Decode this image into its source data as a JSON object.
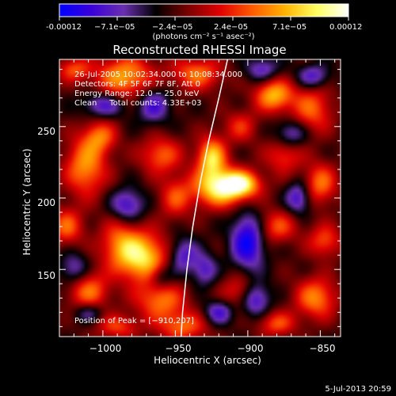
{
  "chart_data": {
    "type": "heatmap",
    "title": "Reconstructed RHESSI Image",
    "xlabel": "Heliocentric X (arcsec)",
    "ylabel": "Heliocentric Y (arcsec)",
    "xlim": [
      -1030,
      -836
    ],
    "ylim": [
      103,
      297
    ],
    "x_ticks": [
      -1000,
      -950,
      -900,
      -850
    ],
    "y_ticks": [
      150,
      200,
      250
    ],
    "x_tick_labels": [
      "−1000",
      "−950",
      "−900",
      "−850"
    ],
    "y_tick_labels": [
      "150",
      "200",
      "250"
    ],
    "colorbar": {
      "min": -0.00012,
      "max": 0.00012,
      "tick_labels": [
        "-0.00012",
        "−7.1e−05",
        "−2.4e−05",
        "2.4e−05",
        "7.1e−05",
        "0.00012"
      ],
      "unit_label": "(photons cm⁻² s⁻¹ asec⁻²)",
      "colors": [
        "#0000ff",
        "#3a00d8",
        "#6a2fb0",
        "#000000",
        "#7a0000",
        "#e00000",
        "#ff5a00",
        "#ffb000",
        "#ffff60",
        "#ffffff"
      ]
    },
    "annotations": {
      "line1": "26-Jul-2005 10:02:34.000 to 10:08:34.000",
      "line2": "Detectors: 4F 5F 6F 7F 8F, Att 0",
      "line3": "Energy Range: 12.0 − 25.0 keV",
      "line4": "Clean     Total counts: 4.33E+03",
      "peak": "Position of Peak = [−910,207]"
    },
    "peak_position": [
      -910,
      207
    ],
    "limb_points": [
      [
        -914,
        297
      ],
      [
        -920,
        270
      ],
      [
        -927,
        240
      ],
      [
        -933,
        210
      ],
      [
        -938,
        180
      ],
      [
        -942,
        150
      ],
      [
        -945,
        120
      ],
      [
        -946,
        103
      ]
    ],
    "blobs": [
      {
        "x": -918,
        "y": 207,
        "v": 1.0,
        "sx": 14,
        "sy": 9
      },
      {
        "x": -925,
        "y": 228,
        "v": 0.9,
        "sx": 7,
        "sy": 10
      },
      {
        "x": -905,
        "y": 210,
        "v": 0.75,
        "sx": 9,
        "sy": 6
      },
      {
        "x": -972,
        "y": 158,
        "v": 0.9,
        "sx": 12,
        "sy": 12
      },
      {
        "x": -988,
        "y": 168,
        "v": 0.55,
        "sx": 10,
        "sy": 12
      },
      {
        "x": -1012,
        "y": 222,
        "v": 0.7,
        "sx": 10,
        "sy": 14
      },
      {
        "x": -1002,
        "y": 243,
        "v": 0.55,
        "sx": 8,
        "sy": 8
      },
      {
        "x": -1025,
        "y": 180,
        "v": 0.55,
        "sx": 8,
        "sy": 9
      },
      {
        "x": -1010,
        "y": 135,
        "v": 0.6,
        "sx": 10,
        "sy": 10
      },
      {
        "x": -960,
        "y": 230,
        "v": 0.55,
        "sx": 10,
        "sy": 9
      },
      {
        "x": -950,
        "y": 200,
        "v": 0.45,
        "sx": 8,
        "sy": 10
      },
      {
        "x": -960,
        "y": 128,
        "v": 0.6,
        "sx": 12,
        "sy": 9
      },
      {
        "x": -945,
        "y": 110,
        "v": 0.55,
        "sx": 12,
        "sy": 7
      },
      {
        "x": -985,
        "y": 285,
        "v": 0.75,
        "sx": 14,
        "sy": 10
      },
      {
        "x": -935,
        "y": 287,
        "v": 0.6,
        "sx": 12,
        "sy": 8
      },
      {
        "x": -882,
        "y": 272,
        "v": 0.8,
        "sx": 9,
        "sy": 8
      },
      {
        "x": -856,
        "y": 262,
        "v": 0.55,
        "sx": 10,
        "sy": 12
      },
      {
        "x": -850,
        "y": 210,
        "v": 0.6,
        "sx": 8,
        "sy": 10
      },
      {
        "x": -875,
        "y": 230,
        "v": 0.45,
        "sx": 9,
        "sy": 9
      },
      {
        "x": -880,
        "y": 180,
        "v": 0.5,
        "sx": 10,
        "sy": 8
      },
      {
        "x": -847,
        "y": 170,
        "v": 0.5,
        "sx": 8,
        "sy": 8
      },
      {
        "x": -853,
        "y": 130,
        "v": 0.65,
        "sx": 10,
        "sy": 10
      },
      {
        "x": -905,
        "y": 135,
        "v": 0.45,
        "sx": 9,
        "sy": 8
      },
      {
        "x": -880,
        "y": 112,
        "v": 0.5,
        "sx": 9,
        "sy": 6
      },
      {
        "x": -1020,
        "y": 290,
        "v": 0.5,
        "sx": 8,
        "sy": 6
      },
      {
        "x": -905,
        "y": 250,
        "v": 0.4,
        "sx": 8,
        "sy": 8
      },
      {
        "x": -990,
        "y": 110,
        "v": 0.45,
        "sx": 10,
        "sy": 6
      },
      {
        "x": -983,
        "y": 195,
        "v": -0.55,
        "sx": 8,
        "sy": 8
      },
      {
        "x": -1000,
        "y": 265,
        "v": -0.5,
        "sx": 10,
        "sy": 6
      },
      {
        "x": -965,
        "y": 265,
        "v": -0.5,
        "sx": 8,
        "sy": 9
      },
      {
        "x": -945,
        "y": 160,
        "v": -0.5,
        "sx": 7,
        "sy": 9
      },
      {
        "x": -900,
        "y": 170,
        "v": -0.75,
        "sx": 8,
        "sy": 14
      },
      {
        "x": -895,
        "y": 130,
        "v": -0.65,
        "sx": 7,
        "sy": 8
      },
      {
        "x": -870,
        "y": 245,
        "v": -0.5,
        "sx": 8,
        "sy": 7
      },
      {
        "x": -865,
        "y": 200,
        "v": -0.55,
        "sx": 6,
        "sy": 8
      },
      {
        "x": -1020,
        "y": 150,
        "v": -0.45,
        "sx": 7,
        "sy": 8
      },
      {
        "x": -960,
        "y": 145,
        "v": -0.4,
        "sx": 6,
        "sy": 6
      },
      {
        "x": -930,
        "y": 150,
        "v": -0.45,
        "sx": 6,
        "sy": 8
      },
      {
        "x": -890,
        "y": 290,
        "v": -0.45,
        "sx": 8,
        "sy": 6
      },
      {
        "x": -1010,
        "y": 120,
        "v": -0.4,
        "sx": 7,
        "sy": 5
      },
      {
        "x": -855,
        "y": 285,
        "v": -0.5,
        "sx": 8,
        "sy": 6
      },
      {
        "x": -920,
        "y": 120,
        "v": -0.5,
        "sx": 7,
        "sy": 6
      }
    ]
  },
  "footer": {
    "timestamp": "5-Jul-2013 20:59"
  }
}
